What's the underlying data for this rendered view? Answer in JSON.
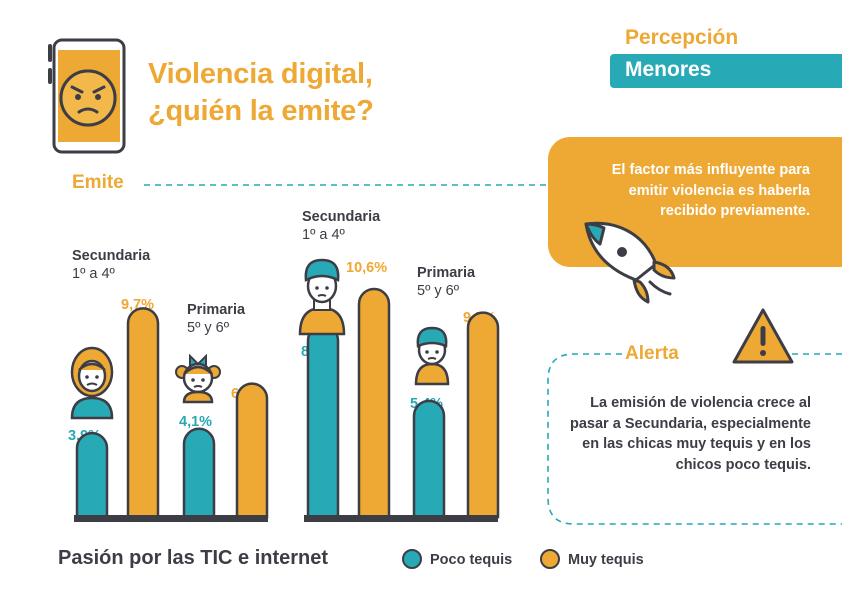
{
  "header": {
    "title_line1": "Violencia digital,",
    "title_line2": "¿quién la emite?",
    "perception_label": "Percepción",
    "segment_label": "Menores"
  },
  "emite_label": "Emite",
  "factor_text": "El factor más influyente para emitir violencia es haberla recibido previamente.",
  "alert": {
    "label": "Alerta",
    "text": "La emisión de violencia crece al pasar a Secundaria, especialmente en las chicas muy tequis y en los chicos poco tequis."
  },
  "legend": {
    "title": "Pasión por las TIC e internet",
    "poco": "Poco tequis",
    "muy": "Muy tequis"
  },
  "colors": {
    "teal": "#27a9b6",
    "orange": "#eea834",
    "dark": "#3d3d46"
  },
  "chart_data": {
    "type": "bar",
    "groups": [
      {
        "level": "Secundaria",
        "grade": "1º a 4º",
        "gender": "girl"
      },
      {
        "level": "Primaria",
        "grade": "5º y 6º",
        "gender": "girl"
      },
      {
        "level": "Secundaria",
        "grade": "1º a 4º",
        "gender": "boy"
      },
      {
        "level": "Primaria",
        "grade": "5º y 6º",
        "gender": "boy"
      }
    ],
    "series": [
      {
        "name": "Poco tequis",
        "values": [
          3.9,
          4.1,
          8.9,
          5.4
        ],
        "labels": [
          "3.9%",
          "4,1%",
          "8,9%",
          "5,4%"
        ]
      },
      {
        "name": "Muy tequis",
        "values": [
          9.7,
          6.2,
          10.6,
          9.5
        ],
        "labels": [
          "9,7%",
          "6,2%",
          "10,6%",
          "9,5%"
        ]
      }
    ],
    "ylim": [
      0,
      10.6
    ]
  }
}
